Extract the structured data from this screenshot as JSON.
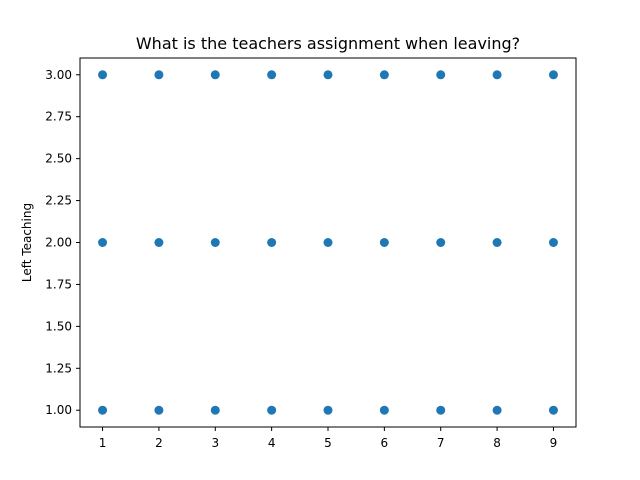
{
  "chart_data": {
    "type": "scatter",
    "title": "What is the teachers assignment when leaving?",
    "xlabel": "",
    "ylabel": "Left Teaching",
    "xlim": [
      0.6,
      9.4
    ],
    "ylim": [
      0.9,
      3.1
    ],
    "xticks": [
      1,
      2,
      3,
      4,
      5,
      6,
      7,
      8,
      9
    ],
    "xtick_labels": [
      "1",
      "2",
      "3",
      "4",
      "5",
      "6",
      "7",
      "8",
      "9"
    ],
    "yticks": [
      1.0,
      1.25,
      1.5,
      1.75,
      2.0,
      2.25,
      2.5,
      2.75,
      3.0
    ],
    "ytick_labels": [
      "1.00",
      "1.25",
      "1.50",
      "1.75",
      "2.00",
      "2.25",
      "2.50",
      "2.75",
      "3.00"
    ],
    "grid": false,
    "legend": "none",
    "marker_color": "#1f77b4",
    "points": [
      {
        "x": 1,
        "y": 1
      },
      {
        "x": 1,
        "y": 2
      },
      {
        "x": 1,
        "y": 3
      },
      {
        "x": 2,
        "y": 1
      },
      {
        "x": 2,
        "y": 2
      },
      {
        "x": 2,
        "y": 3
      },
      {
        "x": 3,
        "y": 1
      },
      {
        "x": 3,
        "y": 2
      },
      {
        "x": 3,
        "y": 3
      },
      {
        "x": 4,
        "y": 1
      },
      {
        "x": 4,
        "y": 2
      },
      {
        "x": 4,
        "y": 3
      },
      {
        "x": 5,
        "y": 1
      },
      {
        "x": 5,
        "y": 2
      },
      {
        "x": 5,
        "y": 3
      },
      {
        "x": 6,
        "y": 1
      },
      {
        "x": 6,
        "y": 2
      },
      {
        "x": 6,
        "y": 3
      },
      {
        "x": 7,
        "y": 1
      },
      {
        "x": 7,
        "y": 2
      },
      {
        "x": 7,
        "y": 3
      },
      {
        "x": 8,
        "y": 1
      },
      {
        "x": 8,
        "y": 2
      },
      {
        "x": 8,
        "y": 3
      },
      {
        "x": 9,
        "y": 1
      },
      {
        "x": 9,
        "y": 2
      },
      {
        "x": 9,
        "y": 3
      }
    ]
  }
}
